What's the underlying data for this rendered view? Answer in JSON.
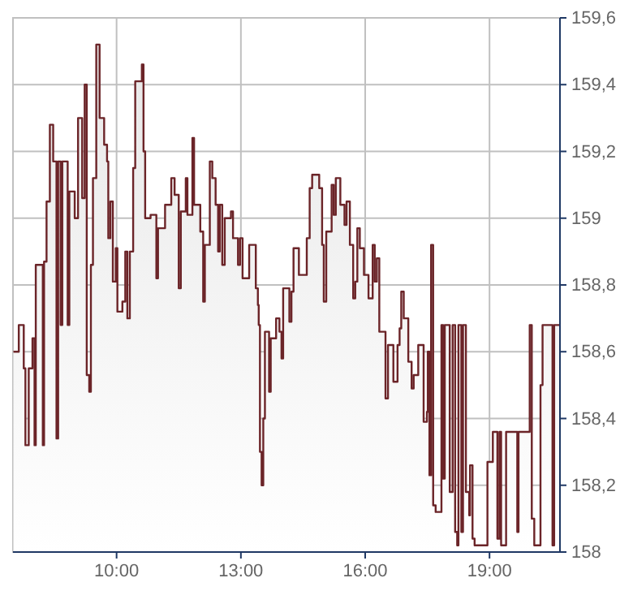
{
  "chart_data": {
    "type": "area",
    "color": "#6b2428",
    "grid": true,
    "xlim": [
      7.5,
      20.7
    ],
    "ylim": [
      158,
      159.6
    ],
    "xticks": [
      {
        "value": 10,
        "label": "10:00"
      },
      {
        "value": 13,
        "label": "13:00"
      },
      {
        "value": 16,
        "label": "16:00"
      },
      {
        "value": 19,
        "label": "19:00"
      }
    ],
    "yticks": [
      {
        "value": 158,
        "label": "158"
      },
      {
        "value": 158.2,
        "label": "158,2"
      },
      {
        "value": 158.4,
        "label": "158,4"
      },
      {
        "value": 158.6,
        "label": "158,6"
      },
      {
        "value": 158.8,
        "label": "158,8"
      },
      {
        "value": 159,
        "label": "159"
      },
      {
        "value": 159.2,
        "label": "159,2"
      },
      {
        "value": 159.4,
        "label": "159,4"
      },
      {
        "value": 159.6,
        "label": "159,6"
      }
    ],
    "x": [
      7.51,
      7.64,
      7.64,
      7.76,
      7.76,
      7.8,
      7.8,
      7.88,
      7.88,
      7.97,
      7.97,
      8.02,
      8.02,
      8.05,
      8.05,
      8.22,
      8.22,
      8.25,
      8.25,
      8.31,
      8.31,
      8.39,
      8.39,
      8.47,
      8.47,
      8.55,
      8.55,
      8.59,
      8.59,
      8.65,
      8.65,
      8.69,
      8.69,
      8.82,
      8.82,
      8.86,
      8.86,
      8.99,
      8.99,
      9.07,
      9.07,
      9.17,
      9.17,
      9.23,
      9.23,
      9.28,
      9.28,
      9.34,
      9.34,
      9.38,
      9.38,
      9.43,
      9.43,
      9.51,
      9.51,
      9.59,
      9.59,
      9.7,
      9.7,
      9.77,
      9.77,
      9.8,
      9.8,
      9.85,
      9.85,
      9.91,
      9.91,
      9.98,
      9.98,
      10.02,
      10.02,
      10.14,
      10.14,
      10.21,
      10.21,
      10.26,
      10.26,
      10.32,
      10.32,
      10.4,
      10.4,
      10.45,
      10.45,
      10.61,
      10.61,
      10.65,
      10.65,
      10.69,
      10.69,
      10.82,
      10.82,
      10.96,
      10.96,
      11,
      11,
      11.17,
      11.17,
      11.32,
      11.32,
      11.4,
      11.4,
      11.5,
      11.5,
      11.55,
      11.55,
      11.67,
      11.67,
      11.71,
      11.71,
      11.83,
      11.83,
      11.87,
      11.87,
      12.02,
      12.02,
      12.09,
      12.09,
      12.13,
      12.13,
      12.25,
      12.25,
      12.31,
      12.31,
      12.39,
      12.39,
      12.45,
      12.45,
      12.49,
      12.49,
      12.55,
      12.55,
      12.61,
      12.61,
      12.76,
      12.76,
      12.81,
      12.81,
      12.93,
      12.93,
      12.98,
      12.98,
      13.04,
      13.04,
      13.2,
      13.2,
      13.36,
      13.36,
      13.41,
      13.41,
      13.43,
      13.43,
      13.46,
      13.46,
      13.5,
      13.5,
      13.54,
      13.54,
      13.58,
      13.58,
      13.68,
      13.68,
      13.72,
      13.72,
      13.85,
      13.85,
      13.93,
      13.93,
      13.98,
      13.98,
      14.02,
      14.02,
      14.17,
      14.17,
      14.22,
      14.22,
      14.27,
      14.27,
      14.4,
      14.4,
      14.59,
      14.59,
      14.66,
      14.66,
      14.72,
      14.72,
      14.89,
      14.89,
      14.96,
      14.96,
      15,
      15,
      15.06,
      15.06,
      15.19,
      15.19,
      15.24,
      15.24,
      15.29,
      15.29,
      15.4,
      15.4,
      15.5,
      15.5,
      15.55,
      15.55,
      15.63,
      15.63,
      15.71,
      15.71,
      15.76,
      15.76,
      15.81,
      15.81,
      15.87,
      15.87,
      15.97,
      15.97,
      16.08,
      16.08,
      16.18,
      16.18,
      16.23,
      16.23,
      16.28,
      16.28,
      16.34,
      16.34,
      16.49,
      16.49,
      16.55,
      16.55,
      16.68,
      16.68,
      16.78,
      16.78,
      16.83,
      16.83,
      16.87,
      16.87,
      16.93,
      16.93,
      17.04,
      17.04,
      17.12,
      17.12,
      17.17,
      17.17,
      17.28,
      17.28,
      17.41,
      17.41,
      17.49,
      17.49,
      17.51,
      17.51,
      17.55,
      17.55,
      17.59,
      17.59,
      17.64,
      17.64,
      17.7,
      17.7,
      17.84,
      17.84,
      17.88,
      17.88,
      17.92,
      17.92,
      18.04,
      18.04,
      18.11,
      18.11,
      18.17,
      18.17,
      18.22,
      18.22,
      18.25,
      18.25,
      18.32,
      18.32,
      18.36,
      18.36,
      18.43,
      18.43,
      18.51,
      18.51,
      18.53,
      18.53,
      18.59,
      18.59,
      18.64,
      18.64,
      18.95,
      18.95,
      19.08,
      19.08,
      19.19,
      19.19,
      19.24,
      19.24,
      19.28,
      19.28,
      19.4,
      19.4,
      19.67,
      19.67,
      19.7,
      19.7,
      19.97,
      19.97,
      20.02,
      20.02,
      20.08,
      20.08,
      20.23,
      20.23,
      20.28,
      20.28,
      20.52,
      20.52,
      20.56,
      20.56,
      20.69
    ],
    "values": [
      158.6,
      158.6,
      158.68,
      158.68,
      158.55,
      158.55,
      158.32,
      158.32,
      158.55,
      158.55,
      158.64,
      158.64,
      158.32,
      158.32,
      158.86,
      158.86,
      158.32,
      158.32,
      158.87,
      158.87,
      159.05,
      159.05,
      159.28,
      159.28,
      159.17,
      159.17,
      158.34,
      158.34,
      159.17,
      159.17,
      158.68,
      158.68,
      159.17,
      159.17,
      158.68,
      158.68,
      159.08,
      159.08,
      159,
      159,
      159.3,
      159.3,
      159.06,
      159.06,
      159.4,
      159.4,
      158.53,
      158.53,
      158.48,
      158.48,
      158.86,
      158.86,
      159.12,
      159.12,
      159.52,
      159.52,
      159.3,
      159.3,
      159.22,
      159.22,
      159.17,
      159.17,
      158.94,
      158.94,
      159.05,
      159.05,
      158.81,
      158.81,
      158.91,
      158.91,
      158.72,
      158.72,
      158.75,
      158.75,
      158.9,
      158.9,
      158.7,
      158.7,
      158.9,
      158.9,
      159.15,
      159.15,
      159.41,
      159.41,
      159.46,
      159.46,
      159.2,
      159.2,
      159,
      159,
      159.01,
      159.01,
      158.82,
      158.82,
      158.97,
      158.97,
      159.04,
      159.04,
      159.12,
      159.12,
      159.07,
      159.07,
      158.79,
      158.79,
      159.02,
      159.02,
      159.12,
      159.12,
      159.01,
      159.01,
      159.24,
      159.24,
      159.04,
      159.04,
      158.96,
      158.96,
      158.75,
      158.75,
      158.92,
      158.92,
      159.17,
      159.17,
      159.12,
      159.12,
      159.04,
      159.04,
      158.9,
      158.9,
      159.04,
      159.04,
      158.86,
      158.86,
      159,
      159,
      159.02,
      159.02,
      158.94,
      158.94,
      158.86,
      158.86,
      158.94,
      158.94,
      158.82,
      158.82,
      158.92,
      158.92,
      158.79,
      158.79,
      158.74,
      158.74,
      158.68,
      158.68,
      158.3,
      158.3,
      158.2,
      158.2,
      158.4,
      158.4,
      158.66,
      158.66,
      158.48,
      158.48,
      158.64,
      158.64,
      158.7,
      158.7,
      158.66,
      158.66,
      158.58,
      158.58,
      158.79,
      158.79,
      158.69,
      158.69,
      158.78,
      158.78,
      158.91,
      158.91,
      158.83,
      158.83,
      158.94,
      158.94,
      159.09,
      159.09,
      159.13,
      159.13,
      159.09,
      159.09,
      158.92,
      158.92,
      158.75,
      158.75,
      158.96,
      158.96,
      159.1,
      159.1,
      159.01,
      159.01,
      159.12,
      159.12,
      159.04,
      159.04,
      158.98,
      158.98,
      159.05,
      159.05,
      158.92,
      158.92,
      158.76,
      158.76,
      158.81,
      158.81,
      158.97,
      158.97,
      158.91,
      158.91,
      158.83,
      158.83,
      158.76,
      158.76,
      158.92,
      158.92,
      158.81,
      158.81,
      158.88,
      158.88,
      158.66,
      158.66,
      158.46,
      158.46,
      158.62,
      158.62,
      158.51,
      158.51,
      158.62,
      158.62,
      158.67,
      158.67,
      158.78,
      158.78,
      158.7,
      158.7,
      158.57,
      158.57,
      158.49,
      158.49,
      158.53,
      158.53,
      158.62,
      158.62,
      158.39,
      158.39,
      158.42,
      158.42,
      158.6,
      158.6,
      158.23,
      158.23,
      158.92,
      158.92,
      158.14,
      158.14,
      158.12,
      158.12,
      158.68,
      158.68,
      158.22,
      158.22,
      158.68,
      158.68,
      158.18,
      158.18,
      158.68,
      158.68,
      158.06,
      158.06,
      158.02,
      158.02,
      158.68,
      158.68,
      158.06,
      158.06,
      158.68,
      158.68,
      158.18,
      158.18,
      158.11,
      158.11,
      158.26,
      158.26,
      158.04,
      158.04,
      158.02,
      158.02,
      158.27,
      158.27,
      158.36,
      158.36,
      158.04,
      158.04,
      158.36,
      158.36,
      158.02,
      158.02,
      158.36,
      158.36,
      158.06,
      158.06,
      158.36,
      158.36,
      158.68,
      158.68,
      158.1,
      158.1,
      158.02,
      158.02,
      158.5,
      158.5,
      158.68,
      158.68,
      158.02,
      158.02,
      158.68,
      158.68
    ]
  }
}
